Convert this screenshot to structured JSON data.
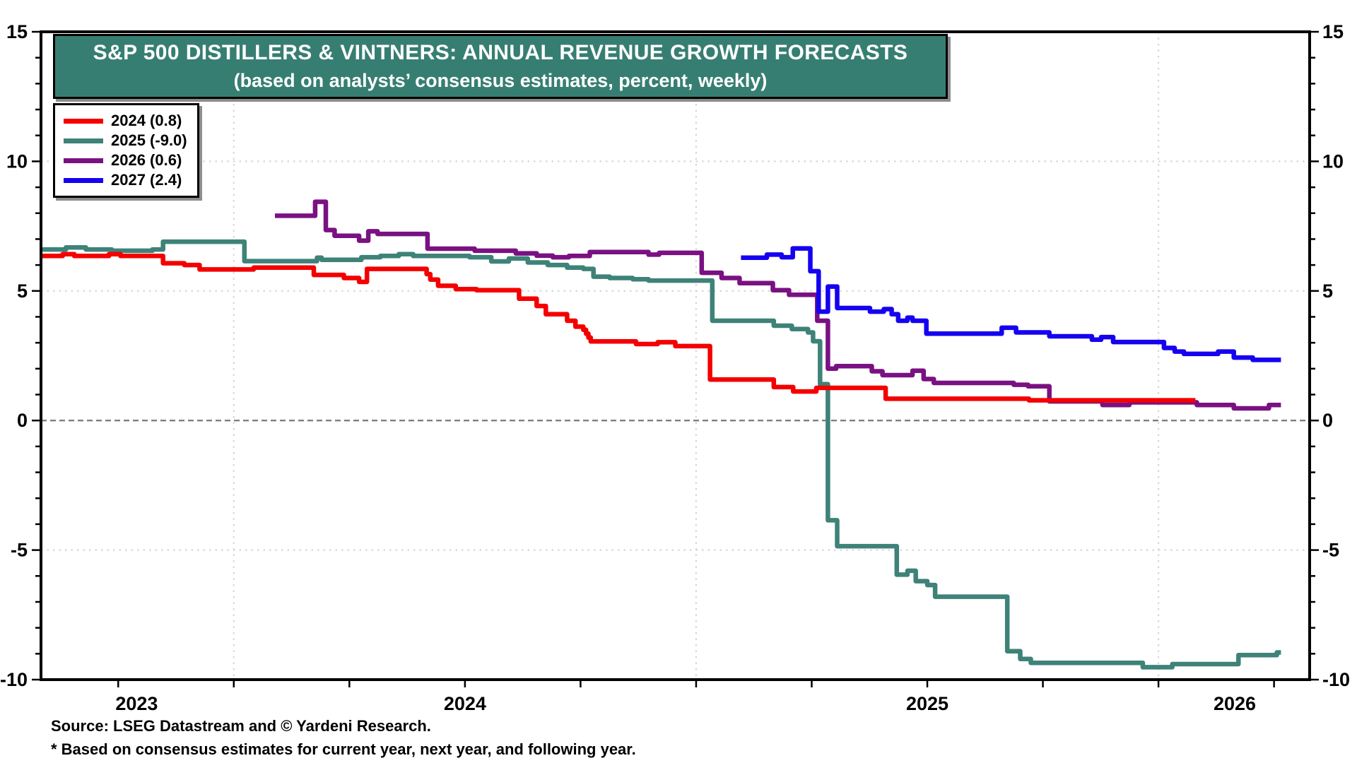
{
  "title": {
    "line1": "S&P 500 DISTILLERS & VINTNERS: ANNUAL REVENUE GROWTH FORECASTS",
    "line2": "(based on analysts’ consensus estimates, percent, weekly)"
  },
  "footer": {
    "source": "Source: LSEG Datastream and © Yardeni Research.",
    "footnote": "* Based on consensus estimates for current year, next year, and following year."
  },
  "colors": {
    "banner_bg": "#377E72",
    "axis": "#000000",
    "dotted_grid": "#D7D7D7",
    "zero_line": "#7F7F7F",
    "background": "#FFFFFF"
  },
  "chart_data": {
    "type": "line",
    "title": "S&P 500 Distillers & Vintners: Annual Revenue Growth Forecasts",
    "xlabel": "",
    "ylabel": "percent",
    "x_domain": [
      2023.583,
      2026.327
    ],
    "y_domain": [
      -10,
      15
    ],
    "grid": "dotted horizontal at 10/5/-5, dotted vertical at year starts, dashed gray zero line",
    "legend_position": "top-left box",
    "x_gridlines": [
      2024,
      2025,
      2026
    ],
    "y_dotted_gridlines": [
      10,
      5,
      -5
    ],
    "zero_line": 0,
    "x_quarter_ticks": {
      "start": 2023.75,
      "end": 2026.25,
      "step": 0.25
    },
    "y_minor_step": 1,
    "x_labels": [
      {
        "text": "2023",
        "year": 2023.79
      },
      {
        "text": "2024",
        "year": 2024.5
      },
      {
        "text": "2025",
        "year": 2025.5
      },
      {
        "text": "2026",
        "year": 2026.165
      }
    ],
    "y_tick_labels": [
      {
        "value": 15,
        "text": "15"
      },
      {
        "value": 10,
        "text": "10"
      },
      {
        "value": 5,
        "text": "5"
      },
      {
        "value": 0,
        "text": "0"
      },
      {
        "value": -5,
        "text": "-5"
      },
      {
        "value": -10,
        "text": "-10"
      }
    ],
    "series": [
      {
        "name": "2025",
        "legend_label": "2025 (-9.0)",
        "final_value": -9.0,
        "color": "#3E8278",
        "points": [
          [
            2023.583,
            6.6
          ],
          [
            2023.637,
            6.68
          ],
          [
            2023.68,
            6.6
          ],
          [
            2023.736,
            6.55
          ],
          [
            2023.824,
            6.6
          ],
          [
            2023.847,
            6.9
          ],
          [
            2024.023,
            6.15
          ],
          [
            2024.18,
            6.28
          ],
          [
            2024.19,
            6.2
          ],
          [
            2024.276,
            6.3
          ],
          [
            2024.317,
            6.35
          ],
          [
            2024.357,
            6.42
          ],
          [
            2024.388,
            6.35
          ],
          [
            2024.51,
            6.3
          ],
          [
            2024.557,
            6.14
          ],
          [
            2024.595,
            6.25
          ],
          [
            2024.636,
            6.1
          ],
          [
            2024.679,
            6.0
          ],
          [
            2024.721,
            5.9
          ],
          [
            2024.756,
            5.85
          ],
          [
            2024.778,
            5.55
          ],
          [
            2024.813,
            5.5
          ],
          [
            2024.863,
            5.45
          ],
          [
            2024.897,
            5.4
          ],
          [
            2025.035,
            3.85
          ],
          [
            2025.168,
            3.66
          ],
          [
            2025.207,
            3.53
          ],
          [
            2025.242,
            3.4
          ],
          [
            2025.253,
            3.06
          ],
          [
            2025.268,
            1.4
          ],
          [
            2025.285,
            -3.85
          ],
          [
            2025.305,
            -4.85
          ],
          [
            2025.434,
            -5.95
          ],
          [
            2025.457,
            -5.8
          ],
          [
            2025.475,
            -6.2
          ],
          [
            2025.5,
            -6.35
          ],
          [
            2025.517,
            -6.8
          ],
          [
            2025.673,
            -8.9
          ],
          [
            2025.701,
            -9.2
          ],
          [
            2025.724,
            -9.35
          ],
          [
            2025.966,
            -9.52
          ],
          [
            2026.03,
            -9.4
          ],
          [
            2026.173,
            -9.05
          ],
          [
            2026.256,
            -8.95
          ],
          [
            2026.265,
            -8.95
          ]
        ]
      },
      {
        "name": "2026",
        "legend_label": "2026 (0.6)",
        "final_value": 0.6,
        "color": "#7A1182",
        "points": [
          [
            2024.089,
            7.9
          ],
          [
            2024.176,
            8.44
          ],
          [
            2024.199,
            7.35
          ],
          [
            2024.218,
            7.13
          ],
          [
            2024.271,
            6.94
          ],
          [
            2024.291,
            7.3
          ],
          [
            2024.311,
            7.2
          ],
          [
            2024.419,
            6.63
          ],
          [
            2024.521,
            6.55
          ],
          [
            2024.61,
            6.45
          ],
          [
            2024.655,
            6.36
          ],
          [
            2024.69,
            6.3
          ],
          [
            2024.725,
            6.35
          ],
          [
            2024.77,
            6.5
          ],
          [
            2024.897,
            6.4
          ],
          [
            2024.92,
            6.47
          ],
          [
            2025.012,
            5.7
          ],
          [
            2025.055,
            5.5
          ],
          [
            2025.094,
            5.3
          ],
          [
            2025.166,
            5.03
          ],
          [
            2025.201,
            4.85
          ],
          [
            2025.262,
            3.85
          ],
          [
            2025.285,
            2.0
          ],
          [
            2025.303,
            2.1
          ],
          [
            2025.38,
            1.9
          ],
          [
            2025.403,
            1.75
          ],
          [
            2025.468,
            1.92
          ],
          [
            2025.492,
            1.6
          ],
          [
            2025.514,
            1.45
          ],
          [
            2025.687,
            1.38
          ],
          [
            2025.718,
            1.32
          ],
          [
            2025.764,
            0.74
          ],
          [
            2025.879,
            0.6
          ],
          [
            2025.937,
            0.7
          ],
          [
            2026.083,
            0.6
          ],
          [
            2026.163,
            0.47
          ],
          [
            2026.239,
            0.6
          ],
          [
            2026.265,
            0.6
          ]
        ]
      },
      {
        "name": "2024",
        "legend_label": "2024 (0.8)",
        "final_value": 0.8,
        "color": "#F40000",
        "points": [
          [
            2023.583,
            6.35
          ],
          [
            2023.63,
            6.42
          ],
          [
            2023.655,
            6.35
          ],
          [
            2023.73,
            6.42
          ],
          [
            2023.755,
            6.35
          ],
          [
            2023.847,
            6.07
          ],
          [
            2023.893,
            6.0
          ],
          [
            2023.926,
            5.83
          ],
          [
            2024.043,
            5.9
          ],
          [
            2024.173,
            5.62
          ],
          [
            2024.238,
            5.5
          ],
          [
            2024.271,
            5.35
          ],
          [
            2024.288,
            5.85
          ],
          [
            2024.417,
            5.65
          ],
          [
            2024.425,
            5.44
          ],
          [
            2024.442,
            5.2
          ],
          [
            2024.48,
            5.07
          ],
          [
            2024.525,
            5.03
          ],
          [
            2024.617,
            4.7
          ],
          [
            2024.655,
            4.42
          ],
          [
            2024.675,
            4.1
          ],
          [
            2024.721,
            3.85
          ],
          [
            2024.739,
            3.62
          ],
          [
            2024.756,
            3.5
          ],
          [
            2024.762,
            3.35
          ],
          [
            2024.767,
            3.2
          ],
          [
            2024.772,
            3.05
          ],
          [
            2024.87,
            2.95
          ],
          [
            2024.917,
            3.02
          ],
          [
            2024.955,
            2.87
          ],
          [
            2025.03,
            1.58
          ],
          [
            2025.168,
            1.29
          ],
          [
            2025.21,
            1.12
          ],
          [
            2025.26,
            1.26
          ],
          [
            2025.41,
            0.84
          ],
          [
            2025.72,
            0.78
          ],
          [
            2026.08,
            0.78
          ]
        ]
      },
      {
        "name": "2027",
        "legend_label": "2027 (2.4)",
        "final_value": 2.4,
        "color": "#1500F0",
        "points": [
          [
            2025.097,
            6.28
          ],
          [
            2025.153,
            6.4
          ],
          [
            2025.185,
            6.3
          ],
          [
            2025.209,
            6.64
          ],
          [
            2025.247,
            5.76
          ],
          [
            2025.265,
            4.2
          ],
          [
            2025.285,
            5.17
          ],
          [
            2025.305,
            4.34
          ],
          [
            2025.376,
            4.2
          ],
          [
            2025.406,
            4.3
          ],
          [
            2025.423,
            4.1
          ],
          [
            2025.437,
            3.85
          ],
          [
            2025.457,
            3.97
          ],
          [
            2025.468,
            3.85
          ],
          [
            2025.498,
            3.35
          ],
          [
            2025.661,
            3.58
          ],
          [
            2025.692,
            3.4
          ],
          [
            2025.764,
            3.25
          ],
          [
            2025.856,
            3.12
          ],
          [
            2025.876,
            3.22
          ],
          [
            2025.902,
            3.03
          ],
          [
            2026.012,
            2.8
          ],
          [
            2026.035,
            2.66
          ],
          [
            2026.055,
            2.57
          ],
          [
            2026.129,
            2.66
          ],
          [
            2026.163,
            2.43
          ],
          [
            2026.204,
            2.34
          ],
          [
            2026.265,
            2.34
          ]
        ]
      }
    ],
    "legend_order": [
      "2024",
      "2025",
      "2026",
      "2027"
    ]
  }
}
